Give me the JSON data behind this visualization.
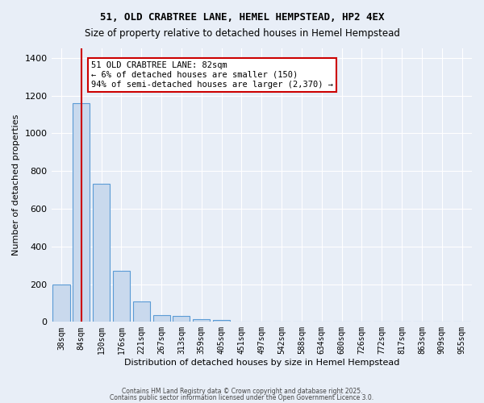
{
  "title1": "51, OLD CRABTREE LANE, HEMEL HEMPSTEAD, HP2 4EX",
  "title2": "Size of property relative to detached houses in Hemel Hempstead",
  "xlabel": "Distribution of detached houses by size in Hemel Hempstead",
  "ylabel": "Number of detached properties",
  "categories": [
    "38sqm",
    "84sqm",
    "130sqm",
    "176sqm",
    "221sqm",
    "267sqm",
    "313sqm",
    "359sqm",
    "405sqm",
    "451sqm",
    "497sqm",
    "542sqm",
    "588sqm",
    "634sqm",
    "680sqm",
    "726sqm",
    "772sqm",
    "817sqm",
    "863sqm",
    "909sqm",
    "955sqm"
  ],
  "values": [
    200,
    1160,
    730,
    270,
    110,
    35,
    30,
    15,
    10,
    0,
    0,
    0,
    0,
    0,
    0,
    0,
    0,
    0,
    0,
    0,
    0
  ],
  "bar_color": "#c9d9ed",
  "bar_edge_color": "#5b9bd5",
  "vline_x": 1,
  "vline_color": "#cc0000",
  "ylim": [
    0,
    1450
  ],
  "yticks": [
    0,
    200,
    400,
    600,
    800,
    1000,
    1200,
    1400
  ],
  "annotation_text": "51 OLD CRABTREE LANE: 82sqm\n← 6% of detached houses are smaller (150)\n94% of semi-detached houses are larger (2,370) →",
  "annotation_box_color": "#cc0000",
  "background_color": "#e8eef7",
  "grid_color": "#ffffff",
  "footer1": "Contains HM Land Registry data © Crown copyright and database right 2025.",
  "footer2": "Contains public sector information licensed under the Open Government Licence 3.0."
}
